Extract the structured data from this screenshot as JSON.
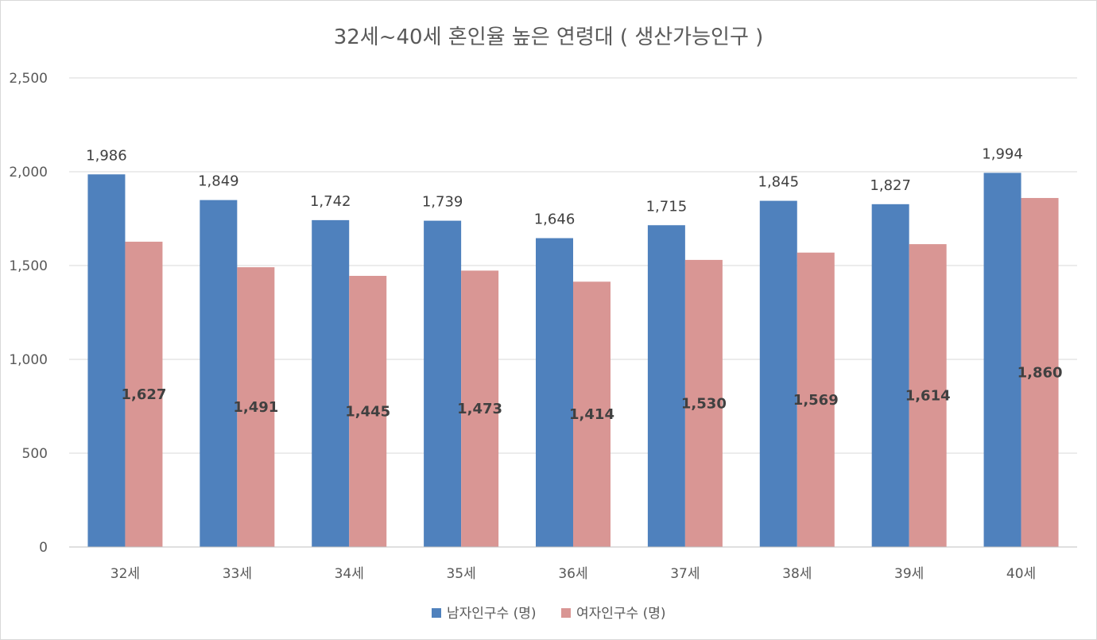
{
  "chart_data": {
    "type": "bar",
    "title": "32세~40세 혼인율 높은 연령대 ( 생산가능인구 )",
    "categories": [
      "32세",
      "33세",
      "34세",
      "35세",
      "36세",
      "37세",
      "38세",
      "39세",
      "40세"
    ],
    "series": [
      {
        "name": "남자인구수 (명)",
        "color": "#4f81bd",
        "values": [
          1986,
          1849,
          1742,
          1739,
          1646,
          1715,
          1845,
          1827,
          1994
        ],
        "labels": [
          "1,986",
          "1,849",
          "1,742",
          "1,739",
          "1,646",
          "1,715",
          "1,845",
          "1,827",
          "1,994"
        ]
      },
      {
        "name": "여자인구수 (명)",
        "color": "#d99694",
        "values": [
          1627,
          1491,
          1445,
          1473,
          1414,
          1530,
          1569,
          1614,
          1860
        ],
        "labels": [
          "1,627",
          "1,491",
          "1,445",
          "1,473",
          "1,414",
          "1,530",
          "1,569",
          "1,614",
          "1,860"
        ]
      }
    ],
    "ylim": [
      0,
      2500
    ],
    "yticks": [
      0,
      500,
      1000,
      1500,
      2000,
      2500
    ],
    "ytick_labels": [
      "0",
      "500",
      "1,000",
      "1,500",
      "2,000",
      "2,500"
    ],
    "grid": true,
    "legend_position": "bottom"
  }
}
